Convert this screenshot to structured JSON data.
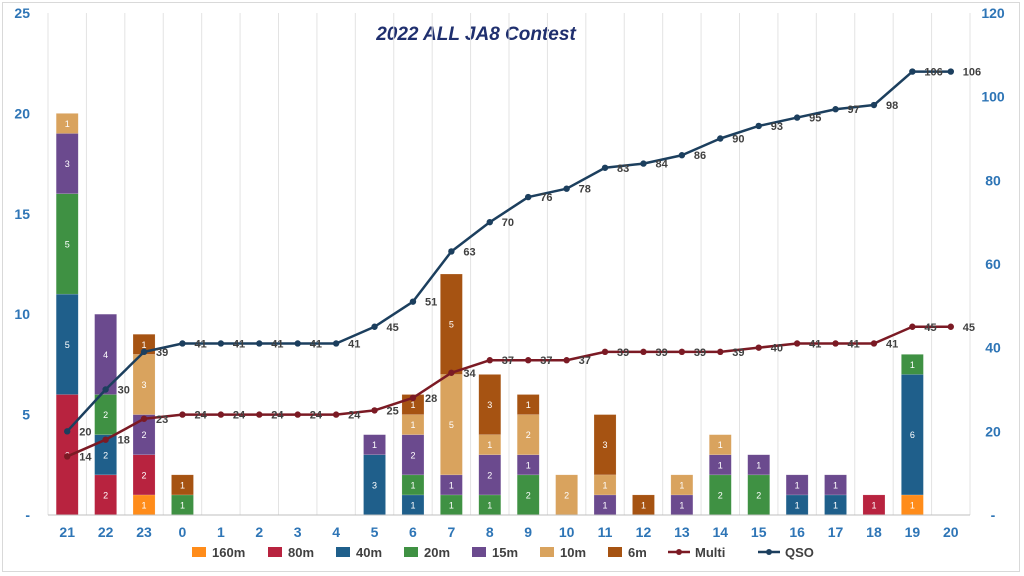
{
  "chart_data": {
    "type": "bar",
    "title": "2022 ALL JA8 Contest",
    "categories": [
      "21",
      "22",
      "23",
      "0",
      "1",
      "2",
      "3",
      "4",
      "5",
      "6",
      "7",
      "8",
      "9",
      "10",
      "11",
      "12",
      "13",
      "14",
      "15",
      "16",
      "17",
      "18",
      "19",
      "20"
    ],
    "left_axis": {
      "min": 0,
      "max": 25,
      "ticks": [
        "-",
        "5",
        "10",
        "15",
        "20",
        "25"
      ]
    },
    "right_axis": {
      "min": 0,
      "max": 120,
      "ticks": [
        "-",
        "20",
        "40",
        "60",
        "80",
        "100",
        "120"
      ]
    },
    "bar_series": [
      {
        "name": "160m",
        "color": "#ff8c1a",
        "values": [
          0,
          0,
          1,
          0,
          0,
          0,
          0,
          0,
          0,
          0,
          0,
          0,
          0,
          0,
          0,
          0,
          0,
          0,
          0,
          0,
          0,
          0,
          1,
          0
        ]
      },
      {
        "name": "80m",
        "color": "#b8233f",
        "values": [
          6,
          2,
          2,
          0,
          0,
          0,
          0,
          0,
          0,
          0,
          0,
          0,
          0,
          0,
          0,
          0,
          0,
          0,
          0,
          0,
          0,
          1,
          0,
          0
        ]
      },
      {
        "name": "40m",
        "color": "#1f5f8b",
        "values": [
          5,
          2,
          0,
          0,
          0,
          0,
          0,
          0,
          3,
          1,
          0,
          0,
          0,
          0,
          0,
          0,
          0,
          0,
          0,
          1,
          1,
          0,
          6,
          0
        ]
      },
      {
        "name": "20m",
        "color": "#3f9143",
        "values": [
          5,
          2,
          0,
          1,
          0,
          0,
          0,
          0,
          0,
          1,
          1,
          1,
          2,
          0,
          0,
          0,
          0,
          2,
          2,
          0,
          0,
          0,
          1,
          0
        ]
      },
      {
        "name": "15m",
        "color": "#6b4a8e",
        "values": [
          3,
          4,
          2,
          0,
          0,
          0,
          0,
          0,
          1,
          2,
          1,
          2,
          1,
          0,
          1,
          0,
          1,
          1,
          1,
          1,
          1,
          0,
          0,
          0
        ]
      },
      {
        "name": "10m",
        "color": "#d9a35e",
        "values": [
          1,
          0,
          3,
          0,
          0,
          0,
          0,
          0,
          0,
          1,
          5,
          1,
          2,
          2,
          1,
          0,
          1,
          1,
          0,
          0,
          0,
          0,
          0,
          0
        ]
      },
      {
        "name": "6m",
        "color": "#a65312",
        "values": [
          0,
          0,
          1,
          1,
          0,
          0,
          0,
          0,
          0,
          1,
          5,
          3,
          1,
          0,
          3,
          1,
          0,
          0,
          0,
          0,
          0,
          0,
          0,
          0
        ]
      }
    ],
    "line_series": [
      {
        "name": "Multi",
        "color": "#7b1a24",
        "values": [
          14,
          18,
          23,
          24,
          24,
          24,
          24,
          24,
          25,
          28,
          34,
          37,
          37,
          37,
          39,
          39,
          39,
          39,
          40,
          41,
          41,
          41,
          45,
          45
        ]
      },
      {
        "name": "QSO",
        "color": "#1c3f5e",
        "values": [
          20,
          30,
          39,
          41,
          41,
          41,
          41,
          41,
          45,
          51,
          63,
          70,
          76,
          78,
          83,
          84,
          86,
          90,
          93,
          95,
          97,
          98,
          106,
          106
        ]
      }
    ],
    "legend": [
      "160m",
      "80m",
      "40m",
      "20m",
      "15m",
      "10m",
      "6m",
      "Multi",
      "QSO"
    ],
    "legend_position": "bottom",
    "grid": "vertical"
  }
}
